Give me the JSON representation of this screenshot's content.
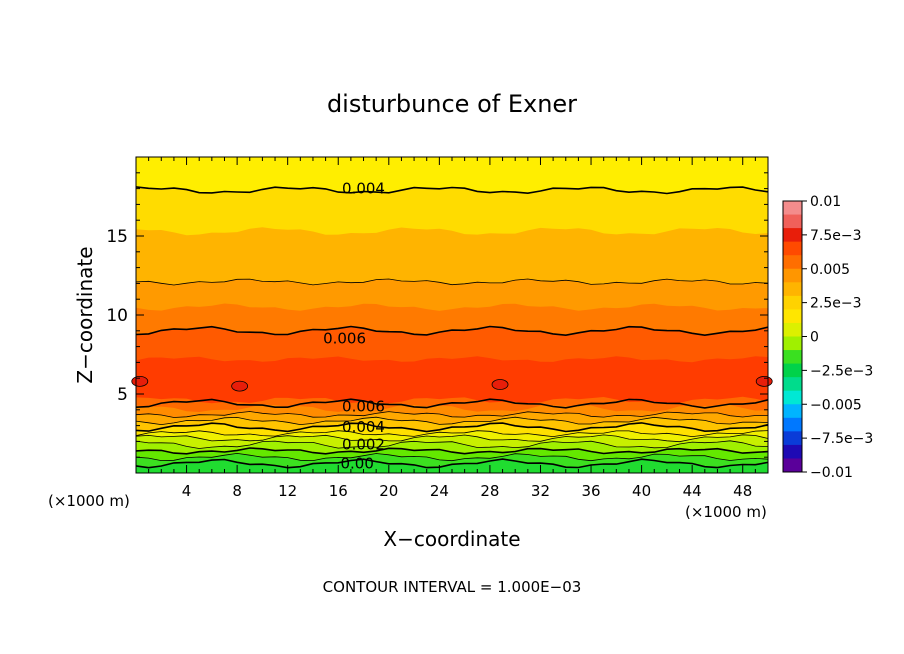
{
  "chart_data": {
    "type": "contour",
    "title": "disturbunce of Exner",
    "xlabel": "X−coordinate",
    "ylabel": "Z−coordinate",
    "x_unit": "(×1000 m)",
    "z_unit": "(×1000 m)",
    "xlim": [
      0,
      50
    ],
    "ylim": [
      0,
      20
    ],
    "x_ticks": [
      4,
      8,
      12,
      16,
      20,
      24,
      28,
      32,
      36,
      40,
      44,
      48
    ],
    "y_ticks": [
      5,
      10,
      15
    ],
    "footer": "CONTOUR INTERVAL = 1.000E−03",
    "contour_labels": [
      {
        "text": "0.004",
        "x": 18,
        "z": 18.0
      },
      {
        "text": "0.006",
        "x": 16.5,
        "z": 8.5
      },
      {
        "text": "0.006",
        "x": 18,
        "z": 4.2
      },
      {
        "text": "0.004",
        "x": 18,
        "z": 2.9
      },
      {
        "text": "0.002",
        "x": 18,
        "z": 1.8
      },
      {
        "text": "0.00",
        "x": 17.5,
        "z": 0.6
      }
    ],
    "colorbar": {
      "min": -0.01,
      "max": 0.01,
      "labels": [
        "0.01",
        "7.5e−3",
        "0.005",
        "2.5e−3",
        "0",
        "−2.5e−3",
        "−0.005",
        "−7.5e−3",
        "−0.01"
      ],
      "colors": [
        "#f48c8c",
        "#f0605a",
        "#e81e0a",
        "#ff4a00",
        "#ff6e00",
        "#ff9600",
        "#ffb400",
        "#ffd200",
        "#ffe600",
        "#dcf000",
        "#a0f000",
        "#3ae020",
        "#00d24a",
        "#00dc8c",
        "#00e8d4",
        "#00b4ff",
        "#0078ff",
        "#0a3cd8",
        "#1e0ab4",
        "#5a009a"
      ]
    },
    "field_bands": [
      {
        "z_top": 20.0,
        "color": "#ffee00"
      },
      {
        "z_top": 17.9,
        "color": "#ffdc00"
      },
      {
        "z_top": 15.3,
        "color": "#ffb400"
      },
      {
        "z_top": 12.1,
        "color": "#ff9a00"
      },
      {
        "z_top": 10.5,
        "color": "#ff7a00"
      },
      {
        "z_top": 9.0,
        "color": "#ff5a00"
      },
      {
        "z_top": 7.2,
        "color": "#ff3c00"
      },
      {
        "z_top": 4.6,
        "color": "#ff6a00"
      },
      {
        "z_top": 4.1,
        "color": "#ff8c00"
      },
      {
        "z_top": 3.7,
        "color": "#ffa800"
      },
      {
        "z_top": 3.3,
        "color": "#ffc400"
      },
      {
        "z_top": 2.9,
        "color": "#ffe000"
      },
      {
        "z_top": 2.5,
        "color": "#f0f000"
      },
      {
        "z_top": 2.2,
        "color": "#c8f000"
      },
      {
        "z_top": 1.8,
        "color": "#a0f000"
      },
      {
        "z_top": 1.4,
        "color": "#64e800"
      },
      {
        "z_top": 1.0,
        "color": "#3ce020"
      },
      {
        "z_top": 0.6,
        "color": "#20dc30"
      }
    ],
    "contour_lines_z": [
      17.9,
      12.1,
      9.0,
      4.4,
      3.7,
      3.3,
      2.9,
      2.5,
      2.2,
      1.8,
      1.4,
      1.0,
      0.6
    ],
    "bold_contours_z": [
      17.9,
      9.0,
      4.4,
      2.9,
      1.4,
      0.6
    ],
    "max_cells": [
      {
        "x": 0.3,
        "z": 5.8
      },
      {
        "x": 8.2,
        "z": 5.5
      },
      {
        "x": 28.8,
        "z": 5.6
      },
      {
        "x": 49.7,
        "z": 5.8
      }
    ]
  }
}
